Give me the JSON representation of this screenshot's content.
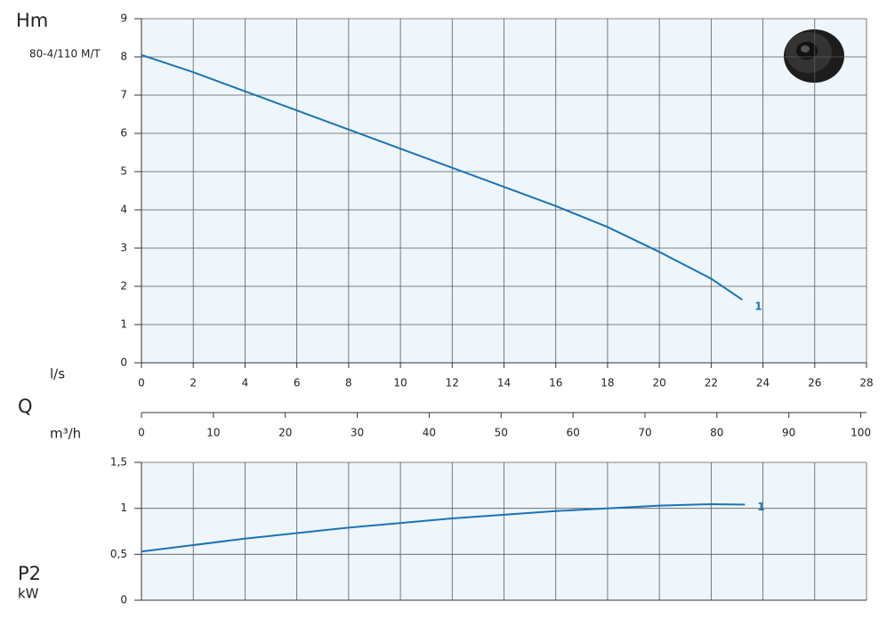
{
  "chart_data": [
    {
      "type": "line",
      "title": "80-4/110 M/T",
      "y_label": "Hm",
      "x_label": "l/s",
      "x": [
        0,
        2,
        4,
        6,
        8,
        10,
        12,
        14,
        16,
        18,
        20,
        22,
        23.2
      ],
      "series": [
        {
          "name": "1",
          "color": "#1a74b4",
          "values": [
            8.05,
            7.6,
            7.1,
            6.6,
            6.1,
            5.6,
            5.1,
            4.6,
            4.1,
            3.55,
            2.9,
            2.2,
            1.65
          ]
        }
      ],
      "xlim": [
        0,
        28
      ],
      "xticks": [
        0,
        2,
        4,
        6,
        8,
        10,
        12,
        14,
        16,
        18,
        20,
        22,
        24,
        26,
        28
      ],
      "ylim": [
        0,
        9
      ],
      "yticks": [
        0,
        1,
        2,
        3,
        4,
        5,
        6,
        7,
        8,
        9
      ],
      "grid": true
    },
    {
      "type": "axis",
      "title": "Q",
      "x_label": "m³/h",
      "xlim": [
        0,
        100.8
      ],
      "xticks": [
        0,
        10,
        20,
        30,
        40,
        50,
        60,
        70,
        80,
        90,
        100
      ]
    },
    {
      "type": "line",
      "y_label": "P2",
      "y_unit": "kW",
      "x": [
        0,
        4,
        8,
        12,
        16,
        20,
        22,
        23.3
      ],
      "series": [
        {
          "name": "1",
          "color": "#1a74b4",
          "values": [
            0.53,
            0.67,
            0.79,
            0.89,
            0.97,
            1.03,
            1.045,
            1.04
          ]
        }
      ],
      "xlim": [
        0,
        28
      ],
      "ylim": [
        0,
        1.5
      ],
      "yticks": [
        0,
        {
          "value": 0.5,
          "label": "0,5"
        },
        1,
        {
          "value": 1.5,
          "label": "1,5"
        }
      ],
      "grid": true
    }
  ]
}
